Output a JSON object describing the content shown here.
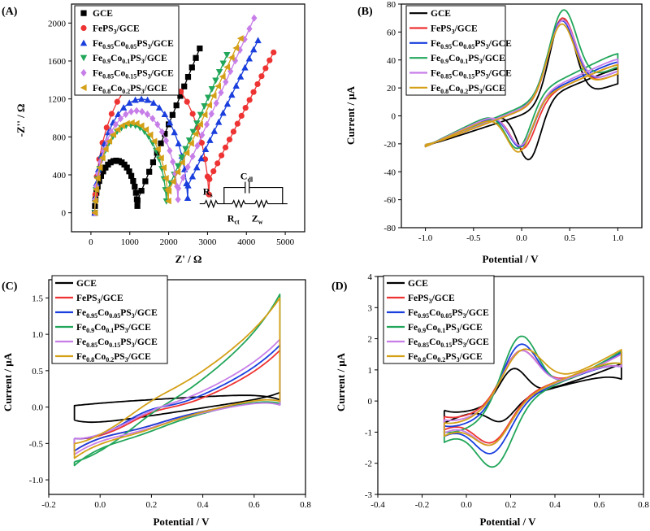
{
  "colors": {
    "GCE": "#000000",
    "FePS3": "#ee3333",
    "Co005": "#1a3fdd",
    "Co01": "#22a65a",
    "Co015": "#c77ee8",
    "Co02": "#d4a017"
  },
  "legend_entries": [
    {
      "key": "GCE",
      "base": "GCE",
      "parts": [
        [
          "GCE",
          ""
        ]
      ]
    },
    {
      "key": "FePS3",
      "base": "FePS3/GCE",
      "parts": [
        [
          "FePS",
          ""
        ],
        [
          "3",
          "sub"
        ],
        [
          "/GCE",
          ""
        ]
      ]
    },
    {
      "key": "Co005",
      "base": "Fe0.95Co0.05PS3/GCE",
      "parts": [
        [
          "Fe",
          ""
        ],
        [
          "0.95",
          "sub"
        ],
        [
          "Co",
          ""
        ],
        [
          "0.05",
          "sub"
        ],
        [
          "PS",
          ""
        ],
        [
          "3",
          "sub"
        ],
        [
          "/GCE",
          ""
        ]
      ]
    },
    {
      "key": "Co01",
      "base": "Fe0.9Co0.1PS3/GCE",
      "parts": [
        [
          "Fe",
          ""
        ],
        [
          "0.9",
          "sub"
        ],
        [
          "Co",
          ""
        ],
        [
          "0.1",
          "sub"
        ],
        [
          "PS",
          ""
        ],
        [
          "3",
          "sub"
        ],
        [
          "/GCE",
          ""
        ]
      ]
    },
    {
      "key": "Co015",
      "base": "Fe0.85Co0.15PS3/GCE",
      "parts": [
        [
          "Fe",
          ""
        ],
        [
          "0.85",
          "sub"
        ],
        [
          "Co",
          ""
        ],
        [
          "0.15",
          "sub"
        ],
        [
          "PS",
          ""
        ],
        [
          "3",
          "sub"
        ],
        [
          "/GCE",
          ""
        ]
      ]
    },
    {
      "key": "Co02",
      "base": "Fe0.8Co0.2PS3/GCE",
      "parts": [
        [
          "Fe",
          ""
        ],
        [
          "0.8",
          "sub"
        ],
        [
          "Co",
          ""
        ],
        [
          "0.2",
          "sub"
        ],
        [
          "PS",
          ""
        ],
        [
          "3",
          "sub"
        ],
        [
          "/GCE",
          ""
        ]
      ]
    }
  ],
  "circuit": {
    "rs": "Rs",
    "cdl": "Cdl",
    "rct": "Rct",
    "zw": "Zw"
  },
  "chart_data": [
    {
      "panel": "(A)",
      "type": "scatter",
      "xlabel": "Z' / Ω",
      "ylabel": "-Z'' / Ω",
      "xlim": [
        -500,
        5500
      ],
      "ylim": [
        -200,
        2200
      ],
      "xticks": [
        0,
        1000,
        2000,
        3000,
        4000,
        5000
      ],
      "yticks": [
        0,
        400,
        800,
        1200,
        1600,
        2000
      ],
      "grid": false,
      "legend": "top-left",
      "series": [
        {
          "key": "GCE",
          "name": "GCE",
          "marker": "square",
          "nyquist": {
            "rs": 100,
            "rct": 1100,
            "wslope": 1.0,
            "xend": 2800
          }
        },
        {
          "key": "FePS3",
          "name": "FePS3/GCE",
          "marker": "circle",
          "nyquist": {
            "rs": 100,
            "rct": 2950,
            "wslope": 0.81,
            "xend": 4700
          }
        },
        {
          "key": "Co005",
          "name": "Fe0.95Co0.05PS3/GCE",
          "marker": "triangle-up",
          "nyquist": {
            "rs": 100,
            "rct": 2400,
            "wslope": 0.85,
            "xend": 4300
          }
        },
        {
          "key": "Co01",
          "name": "Fe0.9Co0.1PS3/GCE",
          "marker": "triangle-down",
          "nyquist": {
            "rs": 100,
            "rct": 1850,
            "wslope": 0.93,
            "xend": 3500
          }
        },
        {
          "key": "Co015",
          "name": "Fe0.85Co0.15PS3/GCE",
          "marker": "diamond",
          "nyquist": {
            "rs": 100,
            "rct": 2150,
            "wslope": 0.92,
            "xend": 4200
          }
        },
        {
          "key": "Co02",
          "name": "Fe0.8Co0.2PS3/GCE",
          "marker": "triangle-left",
          "nyquist": {
            "rs": 100,
            "rct": 1900,
            "wslope": 0.87,
            "xend": 3850
          }
        }
      ]
    },
    {
      "panel": "(B)",
      "type": "line",
      "xlabel": "Potential / V",
      "ylabel": "Current / μA",
      "xlim": [
        -1.25,
        1.25
      ],
      "ylim": [
        -80,
        80
      ],
      "xticks": [
        -1.0,
        -0.5,
        0.0,
        0.5,
        1.0
      ],
      "yticks": [
        -80,
        -60,
        -40,
        -20,
        0,
        20,
        40,
        60,
        80
      ],
      "grid": false,
      "legend": "top-left",
      "series": [
        {
          "key": "GCE",
          "name": "GCE",
          "cv": {
            "xmin": -1.0,
            "xmax": 1.0,
            "upL": -22,
            "upR": 23,
            "loL": -22,
            "loR": 35,
            "ipa": 60,
            "epa": 0.42,
            "wa": 0.13,
            "ipc": -40,
            "epc": 0.08,
            "wc": 0.12,
            "hb": 1.2,
            "hk": 10
          }
        },
        {
          "key": "FePS3",
          "name": "FePS3/GCE",
          "cv": {
            "xmin": -1.0,
            "xmax": 1.0,
            "upL": -22,
            "upR": 30,
            "loL": -22,
            "loR": 38,
            "ipa": 55,
            "epa": 0.42,
            "wa": 0.14,
            "ipc": -32,
            "epc": 0.02,
            "wc": 0.13,
            "hb": 1.5,
            "hk": 12
          }
        },
        {
          "key": "Co005",
          "name": "Fe0.95Co0.05PS3/GCE",
          "cv": {
            "xmin": -1.0,
            "xmax": 1.0,
            "upL": -22,
            "upR": 32,
            "loL": -22,
            "loR": 40,
            "ipa": 52,
            "epa": 0.41,
            "wa": 0.14,
            "ipc": -31,
            "epc": 0.0,
            "wc": 0.13,
            "hb": 1.5,
            "hk": 12
          }
        },
        {
          "key": "Co01",
          "name": "Fe0.9Co0.1PS3/GCE",
          "cv": {
            "xmin": -1.0,
            "xmax": 1.0,
            "upL": -22,
            "upR": 35,
            "loL": -22,
            "loR": 46,
            "ipa": 57,
            "epa": 0.43,
            "wa": 0.14,
            "ipc": -34,
            "epc": -0.03,
            "wc": 0.13,
            "hb": 1.5,
            "hk": 12
          }
        },
        {
          "key": "Co015",
          "name": "Fe0.85Co0.15PS3/GCE",
          "cv": {
            "xmin": -1.0,
            "xmax": 1.0,
            "upL": -22,
            "upR": 32,
            "loL": -22,
            "loR": 42,
            "ipa": 52,
            "epa": 0.42,
            "wa": 0.14,
            "ipc": -31,
            "epc": 0.0,
            "wc": 0.13,
            "hb": 1.5,
            "hk": 12
          }
        },
        {
          "key": "Co02",
          "name": "Fe0.8Co0.2PS3/GCE",
          "cv": {
            "xmin": -1.0,
            "xmax": 1.0,
            "upL": -22,
            "upR": 30,
            "loL": -22,
            "loR": 38,
            "ipa": 51,
            "epa": 0.41,
            "wa": 0.14,
            "ipc": -33,
            "epc": -0.02,
            "wc": 0.13,
            "hb": 1.5,
            "hk": 12
          }
        }
      ]
    },
    {
      "panel": "(C)",
      "type": "line",
      "xlabel": "Potential / V",
      "ylabel": "Current / μA",
      "xlim": [
        -0.2,
        0.8
      ],
      "ylim": [
        -1.2,
        1.75
      ],
      "xticks": [
        -0.2,
        0.0,
        0.2,
        0.4,
        0.6,
        0.8
      ],
      "yticks": [
        -1.0,
        -0.5,
        0.0,
        0.5,
        1.0,
        1.5
      ],
      "grid": false,
      "legend": "top-left",
      "series": [
        {
          "key": "GCE",
          "name": "GCE",
          "cv": {
            "xmin": -0.1,
            "xmax": 0.7,
            "upL": -0.28,
            "upR": 0.2,
            "loL": 0.05,
            "loR": 0.2,
            "ipa": 0,
            "epa": 0.2,
            "wa": 0.1,
            "ipc": 0,
            "epc": 0.2,
            "wc": 0.1,
            "hb": 0.1,
            "hk": 15,
            "ub": 0.05,
            "uk": 15,
            "lb": 0.03,
            "lk": 4
          }
        },
        {
          "key": "FePS3",
          "name": "FePS3/GCE",
          "cv": {
            "xmin": -0.1,
            "xmax": 0.7,
            "upL": -0.55,
            "upR": 0.78,
            "loL": -0.4,
            "loR": 0.15,
            "ipa": 0.08,
            "epa": 0.2,
            "wa": 0.08,
            "ipc": -0.05,
            "epc": 0.15,
            "wc": 0.1,
            "hb": 0.12,
            "hk": 15,
            "ub": 0.3,
            "uk": 6,
            "lb": 0.2,
            "lk": 6
          }
        },
        {
          "key": "Co005",
          "name": "Fe0.95Co0.05PS3/GCE",
          "cv": {
            "xmin": -0.1,
            "xmax": 0.7,
            "upL": -0.55,
            "upR": 0.85,
            "loL": -0.4,
            "loR": 0.15,
            "ipa": 0.1,
            "epa": 0.18,
            "wa": 0.08,
            "ipc": -0.05,
            "epc": 0.15,
            "wc": 0.1,
            "hb": 0.12,
            "hk": 15,
            "ub": 0.3,
            "uk": 6,
            "lb": 0.2,
            "lk": 6
          }
        },
        {
          "key": "Co01",
          "name": "Fe0.9Co0.1PS3/GCE",
          "cv": {
            "xmin": -0.1,
            "xmax": 0.7,
            "upL": -0.9,
            "upR": 1.55,
            "loL": -0.55,
            "loR": 0.2,
            "ipa": 0.05,
            "epa": 0.2,
            "wa": 0.08,
            "ipc": -0.05,
            "epc": 0.15,
            "wc": 0.1,
            "hb": 0.15,
            "hk": 12,
            "ub": 0.45,
            "uk": 7,
            "lb": 0.25,
            "lk": 6
          }
        },
        {
          "key": "Co015",
          "name": "Fe0.85Co0.15PS3/GCE",
          "cv": {
            "xmin": -0.1,
            "xmax": 0.7,
            "upL": -0.55,
            "upR": 0.93,
            "loL": -0.45,
            "loR": 0.15,
            "ipa": 0.05,
            "epa": 0.2,
            "wa": 0.08,
            "ipc": -0.05,
            "epc": 0.15,
            "wc": 0.1,
            "hb": 0.12,
            "hk": 15,
            "ub": 0.3,
            "uk": 6,
            "lb": 0.2,
            "lk": 6
          }
        },
        {
          "key": "Co02",
          "name": "Fe0.8Co0.2PS3/GCE",
          "cv": {
            "xmin": -0.1,
            "xmax": 0.7,
            "upL": -0.62,
            "upR": 1.5,
            "loL": -0.5,
            "loR": 0.2,
            "ipa": 0.05,
            "epa": 0.2,
            "wa": 0.08,
            "ipc": -0.05,
            "epc": 0.15,
            "wc": 0.1,
            "hb": 0.12,
            "hk": 15,
            "ub": 0.4,
            "uk": 6,
            "lb": 0.2,
            "lk": 6
          }
        }
      ]
    },
    {
      "panel": "(D)",
      "type": "line",
      "xlabel": "Potential / V",
      "ylabel": "Current / μA",
      "xlim": [
        -0.4,
        0.8
      ],
      "ylim": [
        -3,
        4
      ],
      "xticks": [
        -0.4,
        -0.2,
        0.0,
        0.2,
        0.4,
        0.6,
        0.8
      ],
      "yticks": [
        -3,
        -2,
        -1,
        0,
        1,
        2,
        3,
        4
      ],
      "grid": false,
      "legend": "top-left",
      "series": [
        {
          "key": "GCE",
          "name": "GCE",
          "cv": {
            "xmin": -0.1,
            "xmax": 0.7,
            "upL": -0.6,
            "upR": 1.2,
            "loL": -0.5,
            "loR": 1.0,
            "ipa": 1.0,
            "epa": 0.21,
            "wa": 0.06,
            "ipc": -0.6,
            "epc": 0.16,
            "wc": 0.06,
            "hb": 0.3,
            "hk": 15,
            "ub": 0.2,
            "uk": 4,
            "lb": 0.2,
            "lk": 4
          }
        },
        {
          "key": "FePS3",
          "name": "FePS3/GCE",
          "cv": {
            "xmin": -0.1,
            "xmax": 0.7,
            "upL": -0.8,
            "upR": 1.5,
            "loL": -0.7,
            "loR": 1.4,
            "ipa": 1.5,
            "epa": 0.24,
            "wa": 0.08,
            "ipc": -1.15,
            "epc": 0.12,
            "wc": 0.08,
            "hb": 0.3,
            "hk": 15,
            "ub": 0.2,
            "uk": 4,
            "lb": 0.2,
            "lk": 4
          }
        },
        {
          "key": "Co005",
          "name": "Fe0.95Co0.05PS3/GCE",
          "cv": {
            "xmin": -0.1,
            "xmax": 0.7,
            "upL": -1.1,
            "upR": 1.55,
            "loL": -0.9,
            "loR": 1.4,
            "ipa": 1.85,
            "epa": 0.24,
            "wa": 0.08,
            "ipc": -1.35,
            "epc": 0.12,
            "wc": 0.08,
            "hb": 0.3,
            "hk": 15,
            "ub": 0.2,
            "uk": 4,
            "lb": 0.2,
            "lk": 4
          }
        },
        {
          "key": "Co01",
          "name": "Fe0.9Co0.1PS3/GCE",
          "cv": {
            "xmin": -0.1,
            "xmax": 0.7,
            "upL": -1.3,
            "upR": 1.6,
            "loL": -1.1,
            "loR": 1.5,
            "ipa": 2.2,
            "epa": 0.24,
            "wa": 0.08,
            "ipc": -1.7,
            "epc": 0.13,
            "wc": 0.08,
            "hb": 0.3,
            "hk": 15,
            "ub": 0.2,
            "uk": 4,
            "lb": 0.2,
            "lk": 4
          }
        },
        {
          "key": "Co015",
          "name": "Fe0.85Co0.15PS3/GCE",
          "cv": {
            "xmin": -0.1,
            "xmax": 0.7,
            "upL": -0.9,
            "upR": 1.5,
            "loL": -0.8,
            "loR": 1.4,
            "ipa": 1.55,
            "epa": 0.24,
            "wa": 0.08,
            "ipc": -1.15,
            "epc": 0.12,
            "wc": 0.08,
            "hb": 0.3,
            "hk": 15,
            "ub": 0.2,
            "uk": 4,
            "lb": 0.2,
            "lk": 4
          }
        },
        {
          "key": "Co02",
          "name": "Fe0.8Co0.2PS3/GCE",
          "cv": {
            "xmin": -0.1,
            "xmax": 0.7,
            "upL": -1.0,
            "upR": 1.65,
            "loL": -0.9,
            "loR": 1.5,
            "ipa": 1.55,
            "epa": 0.25,
            "wa": 0.09,
            "ipc": -1.1,
            "epc": 0.12,
            "wc": 0.08,
            "hb": 0.3,
            "hk": 15,
            "ub": 0.2,
            "uk": 4,
            "lb": 0.2,
            "lk": 4
          }
        }
      ]
    }
  ]
}
